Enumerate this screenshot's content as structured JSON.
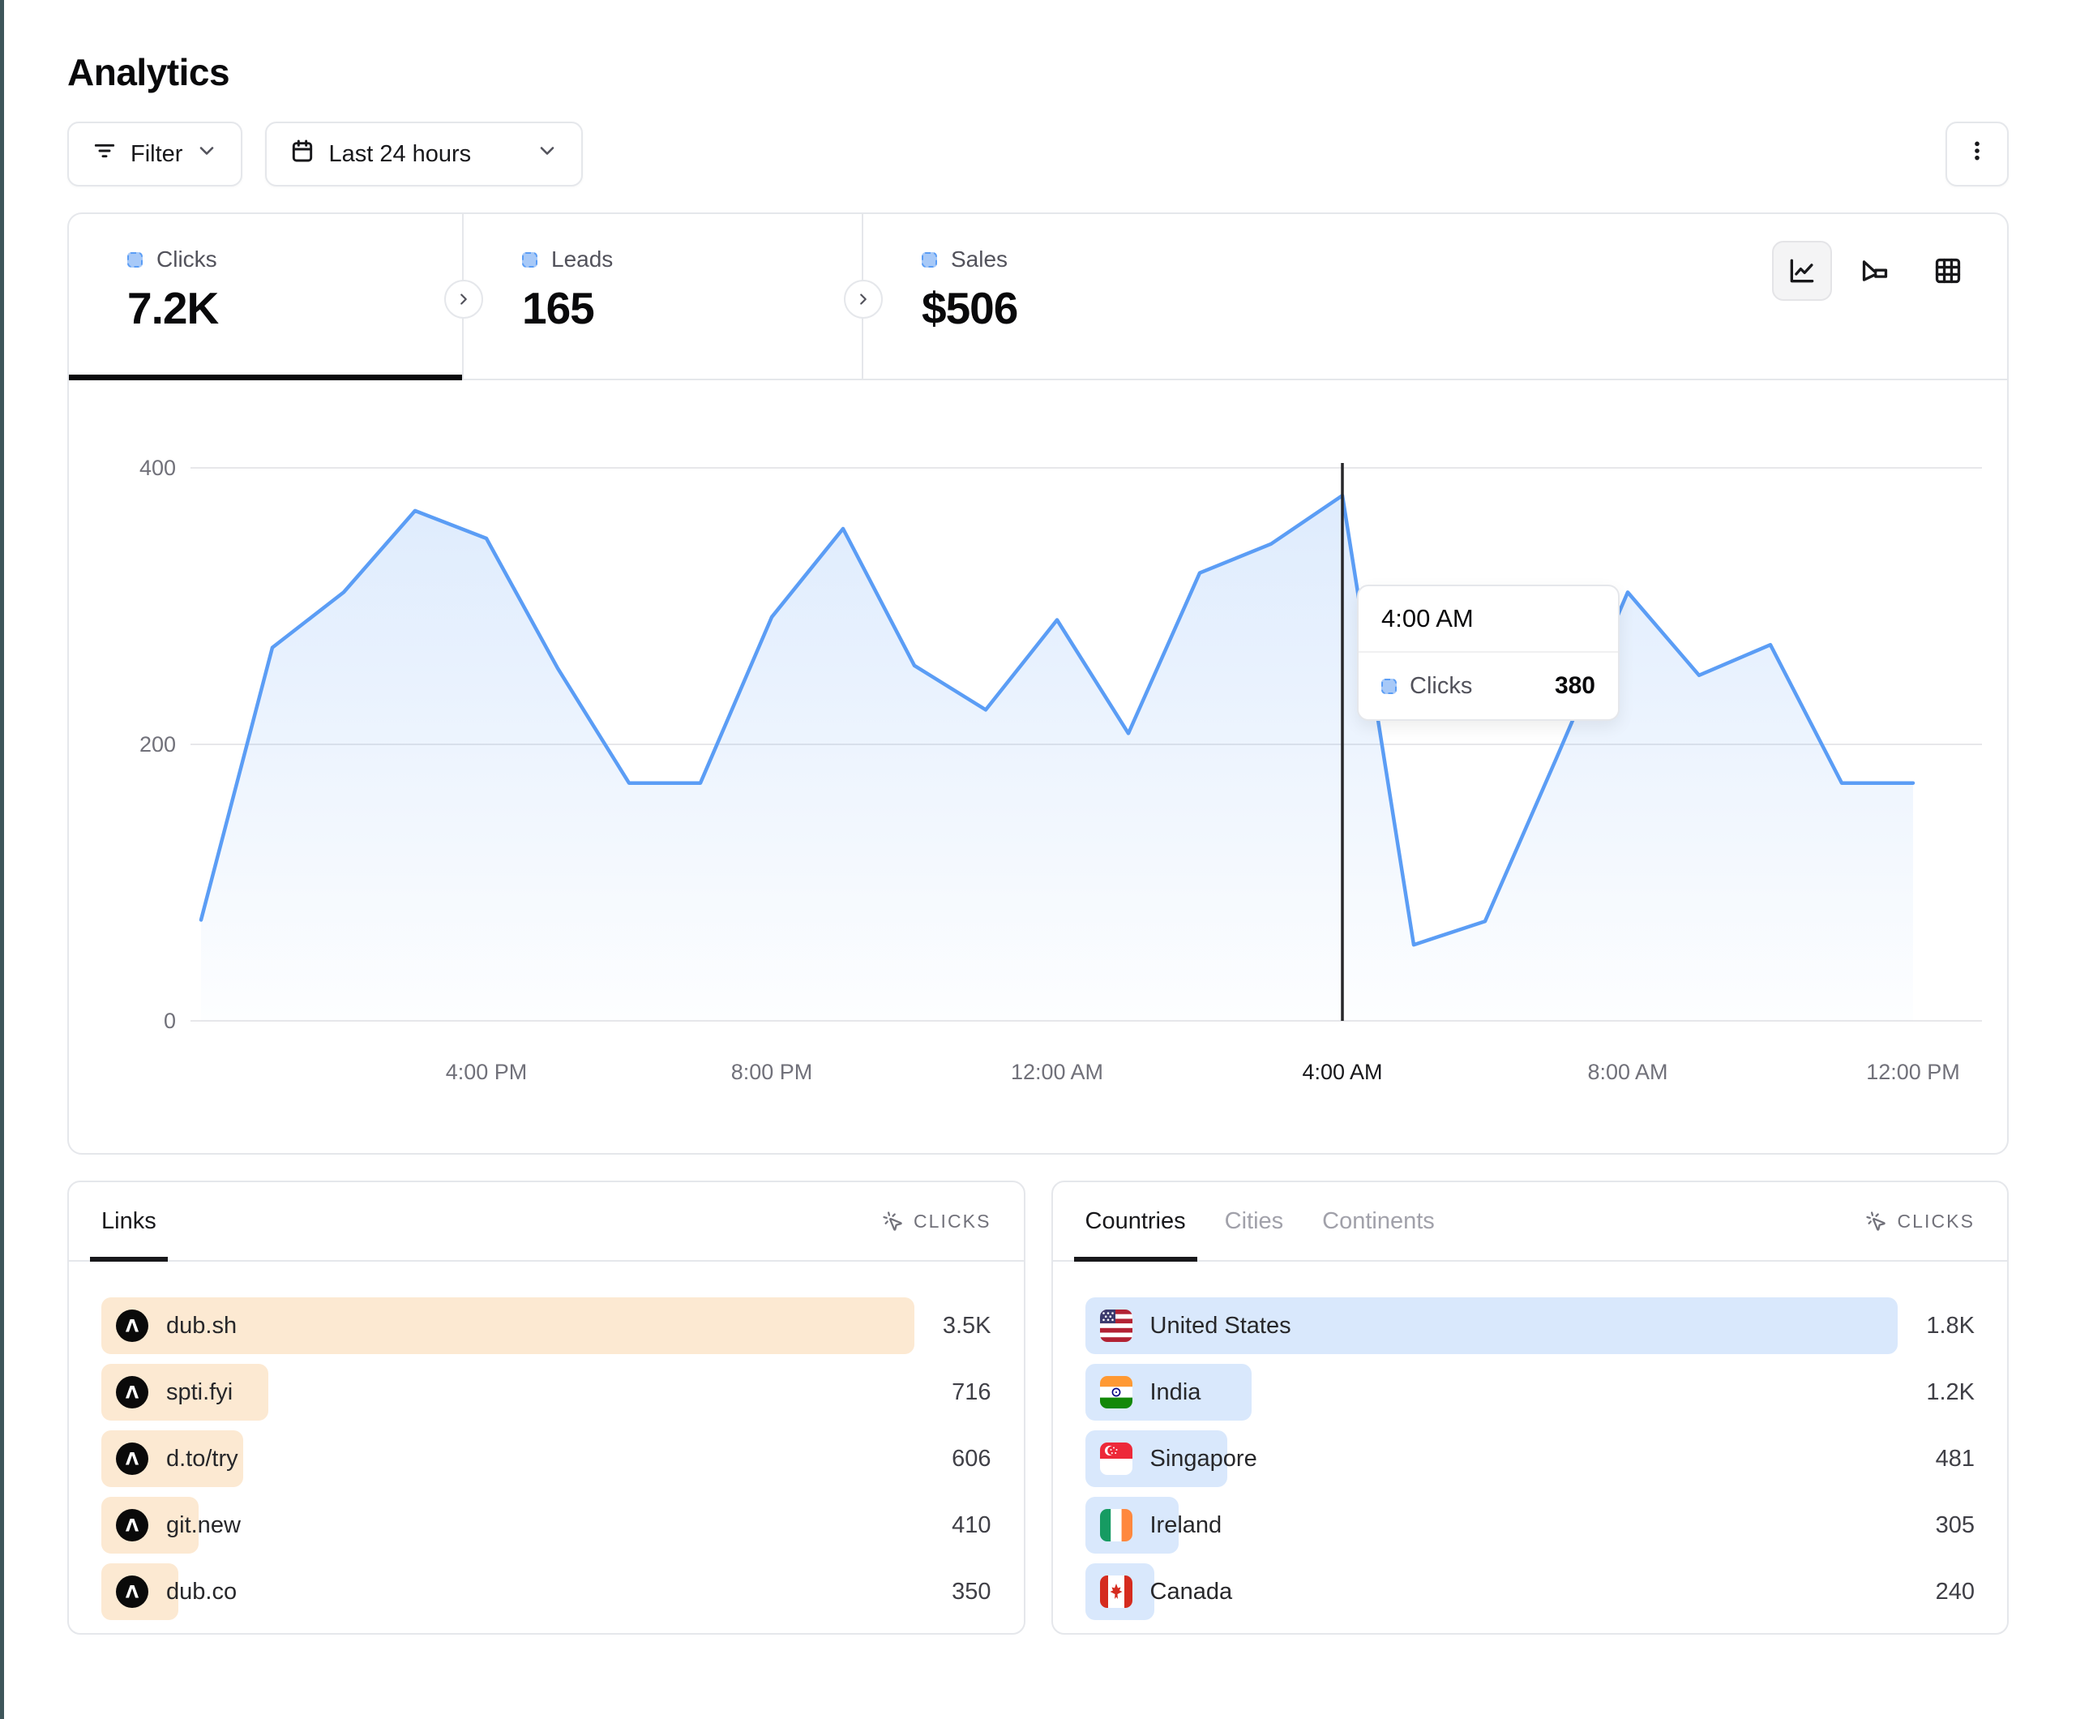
{
  "page": {
    "title": "Analytics"
  },
  "toolbar": {
    "filter_label": "Filter",
    "date_range_label": "Last 24 hours"
  },
  "stats": {
    "tabs": [
      {
        "label": "Clicks",
        "value": "7.2K",
        "active": true
      },
      {
        "label": "Leads",
        "value": "165",
        "active": false
      },
      {
        "label": "Sales",
        "value": "$506",
        "active": false
      }
    ]
  },
  "colors": {
    "accent_blue": "#5b9df5",
    "area_fill_top": "rgba(91,157,245,0.20)",
    "area_fill_bottom": "rgba(91,157,245,0.01)",
    "links_bar": "#fce9d2",
    "countries_bar": "#d9e8fc",
    "grid_line": "#e7e7ea",
    "tick_text": "#71717a",
    "hover_line": "#27272a"
  },
  "chart_data": {
    "type": "area",
    "series_name": "Clicks",
    "x_hours": [
      "12:00 PM",
      "1:00 PM",
      "2:00 PM",
      "3:00 PM",
      "4:00 PM",
      "5:00 PM",
      "6:00 PM",
      "7:00 PM",
      "8:00 PM",
      "9:00 PM",
      "10:00 PM",
      "11:00 PM",
      "12:00 AM",
      "1:00 AM",
      "2:00 AM",
      "3:00 AM",
      "4:00 AM",
      "5:00 AM",
      "6:00 AM",
      "7:00 AM",
      "8:00 AM",
      "9:00 AM",
      "10:00 AM",
      "11:00 AM",
      "12:00 PM"
    ],
    "values": [
      73,
      270,
      310,
      369,
      349,
      255,
      172,
      172,
      292,
      356,
      257,
      225,
      290,
      208,
      324,
      345,
      380,
      55,
      72,
      190,
      310,
      250,
      272,
      172,
      172
    ],
    "xtick_labels": [
      "4:00 PM",
      "8:00 PM",
      "12:00 AM",
      "4:00 AM",
      "8:00 AM",
      "12:00 PM"
    ],
    "xtick_indices": [
      4,
      8,
      12,
      16,
      20,
      24
    ],
    "ytick_labels": [
      "0",
      "200",
      "400"
    ],
    "yticks": [
      0,
      200,
      400
    ],
    "ylim": [
      0,
      460
    ],
    "grid": "horizontal",
    "legend_position": "none",
    "hover_index": 16,
    "hover_label": "4:00 AM",
    "hover_value": 380
  },
  "tooltip": {
    "time": "4:00 AM",
    "series": "Clicks",
    "value": "380"
  },
  "links_panel": {
    "tab_label": "Links",
    "metric_header": "CLICKS",
    "rows": [
      {
        "label": "dub.sh",
        "value": "3.5K",
        "bar_pct": 100
      },
      {
        "label": "spti.fyi",
        "value": "716",
        "bar_pct": 20.5
      },
      {
        "label": "d.to/try",
        "value": "606",
        "bar_pct": 17.5
      },
      {
        "label": "git.new",
        "value": "410",
        "bar_pct": 12
      },
      {
        "label": "dub.co",
        "value": "350",
        "bar_pct": 9.5
      }
    ]
  },
  "countries_panel": {
    "tabs": [
      {
        "label": "Countries",
        "active": true
      },
      {
        "label": "Cities",
        "active": false
      },
      {
        "label": "Continents",
        "active": false
      }
    ],
    "metric_header": "CLICKS",
    "rows": [
      {
        "label": "United States",
        "value": "1.8K",
        "bar_pct": 100,
        "flag": "us"
      },
      {
        "label": "India",
        "value": "1.2K",
        "bar_pct": 20.5,
        "flag": "in"
      },
      {
        "label": "Singapore",
        "value": "481",
        "bar_pct": 17.5,
        "flag": "sg"
      },
      {
        "label": "Ireland",
        "value": "305",
        "bar_pct": 11.5,
        "flag": "ie"
      },
      {
        "label": "Canada",
        "value": "240",
        "bar_pct": 8.5,
        "flag": "ca"
      }
    ]
  }
}
